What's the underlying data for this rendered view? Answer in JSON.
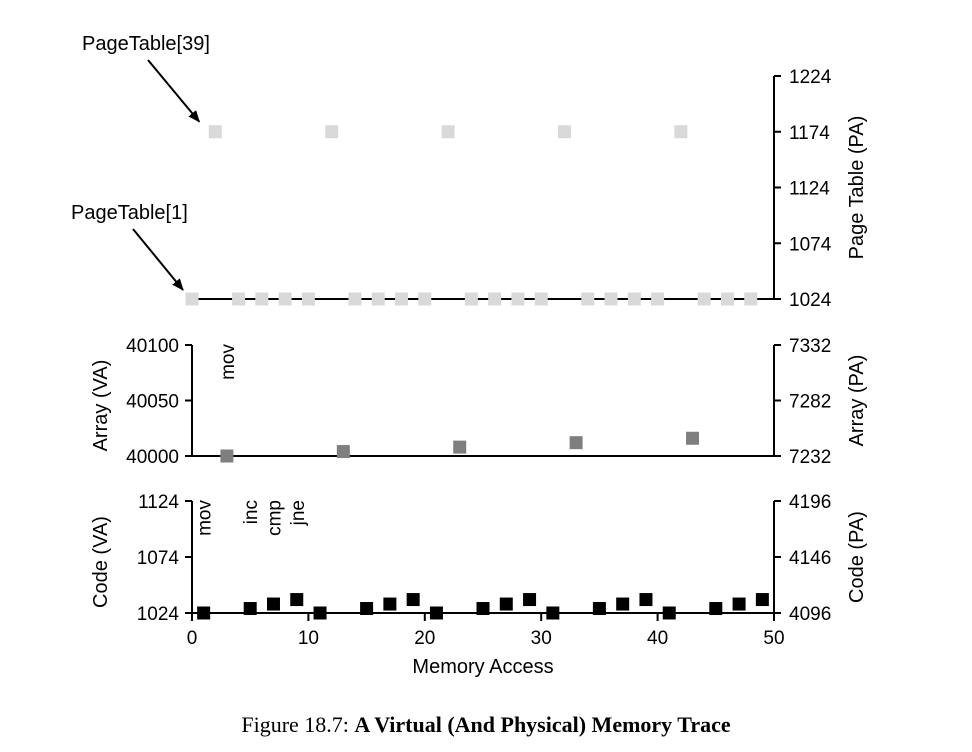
{
  "caption": {
    "label": "Figure 18.7:",
    "title": "A Virtual (And Physical) Memory Trace"
  },
  "chart_data": {
    "type": "scatter",
    "xlabel": "Memory Access",
    "xlim": [
      0,
      50
    ],
    "xticks": [
      "0",
      "10",
      "20",
      "30",
      "40",
      "50"
    ],
    "grid": false,
    "panels": [
      {
        "name": "page-table",
        "left_axis": null,
        "right_axis": {
          "label": "Page Table (PA)",
          "range": [
            1024,
            1224
          ],
          "ticks": [
            "1024",
            "1074",
            "1124",
            "1174",
            "1224"
          ]
        },
        "marker_color": "#d9d9d9",
        "annotations": [
          {
            "text": "PageTable[39]",
            "points_to": [
              2,
              1174
            ]
          },
          {
            "text": "PageTable[1]",
            "points_to": [
              0,
              1024
            ]
          }
        ],
        "points": [
          [
            0,
            1024
          ],
          [
            2,
            1174
          ],
          [
            4,
            1024
          ],
          [
            6,
            1024
          ],
          [
            8,
            1024
          ],
          [
            10,
            1024
          ],
          [
            12,
            1174
          ],
          [
            14,
            1024
          ],
          [
            16,
            1024
          ],
          [
            18,
            1024
          ],
          [
            20,
            1024
          ],
          [
            22,
            1174
          ],
          [
            24,
            1024
          ],
          [
            26,
            1024
          ],
          [
            28,
            1024
          ],
          [
            30,
            1024
          ],
          [
            32,
            1174
          ],
          [
            34,
            1024
          ],
          [
            36,
            1024
          ],
          [
            38,
            1024
          ],
          [
            40,
            1024
          ],
          [
            42,
            1174
          ],
          [
            44,
            1024
          ],
          [
            46,
            1024
          ],
          [
            48,
            1024
          ]
        ]
      },
      {
        "name": "array",
        "left_axis": {
          "label": "Array (VA)",
          "range": [
            40000,
            40100
          ],
          "ticks": [
            "40000",
            "40050",
            "40100"
          ]
        },
        "right_axis": {
          "label": "Array (PA)",
          "range": [
            7232,
            7332
          ],
          "ticks": [
            "7232",
            "7282",
            "7332"
          ]
        },
        "marker_color": "#7f7f7f",
        "instructions": [
          {
            "text": "mov",
            "x": 3
          }
        ],
        "points": [
          [
            3,
            40000
          ],
          [
            13,
            40004
          ],
          [
            23,
            40008
          ],
          [
            33,
            40012
          ],
          [
            43,
            40016
          ]
        ]
      },
      {
        "name": "code",
        "left_axis": {
          "label": "Code (VA)",
          "range": [
            1024,
            1124
          ],
          "ticks": [
            "1024",
            "1074",
            "1124"
          ]
        },
        "right_axis": {
          "label": "Code (PA)",
          "range": [
            4096,
            4196
          ],
          "ticks": [
            "4096",
            "4146",
            "4196"
          ]
        },
        "marker_color": "#000000",
        "instructions": [
          {
            "text": "mov",
            "x": 1
          },
          {
            "text": "inc",
            "x": 5
          },
          {
            "text": "cmp",
            "x": 7
          },
          {
            "text": "jne",
            "x": 9
          }
        ],
        "points": [
          [
            1,
            1024
          ],
          [
            5,
            1028
          ],
          [
            7,
            1032
          ],
          [
            9,
            1036
          ],
          [
            11,
            1024
          ],
          [
            15,
            1028
          ],
          [
            17,
            1032
          ],
          [
            19,
            1036
          ],
          [
            21,
            1024
          ],
          [
            25,
            1028
          ],
          [
            27,
            1032
          ],
          [
            29,
            1036
          ],
          [
            31,
            1024
          ],
          [
            35,
            1028
          ],
          [
            37,
            1032
          ],
          [
            39,
            1036
          ],
          [
            41,
            1024
          ],
          [
            45,
            1028
          ],
          [
            47,
            1032
          ],
          [
            49,
            1036
          ]
        ]
      }
    ]
  }
}
